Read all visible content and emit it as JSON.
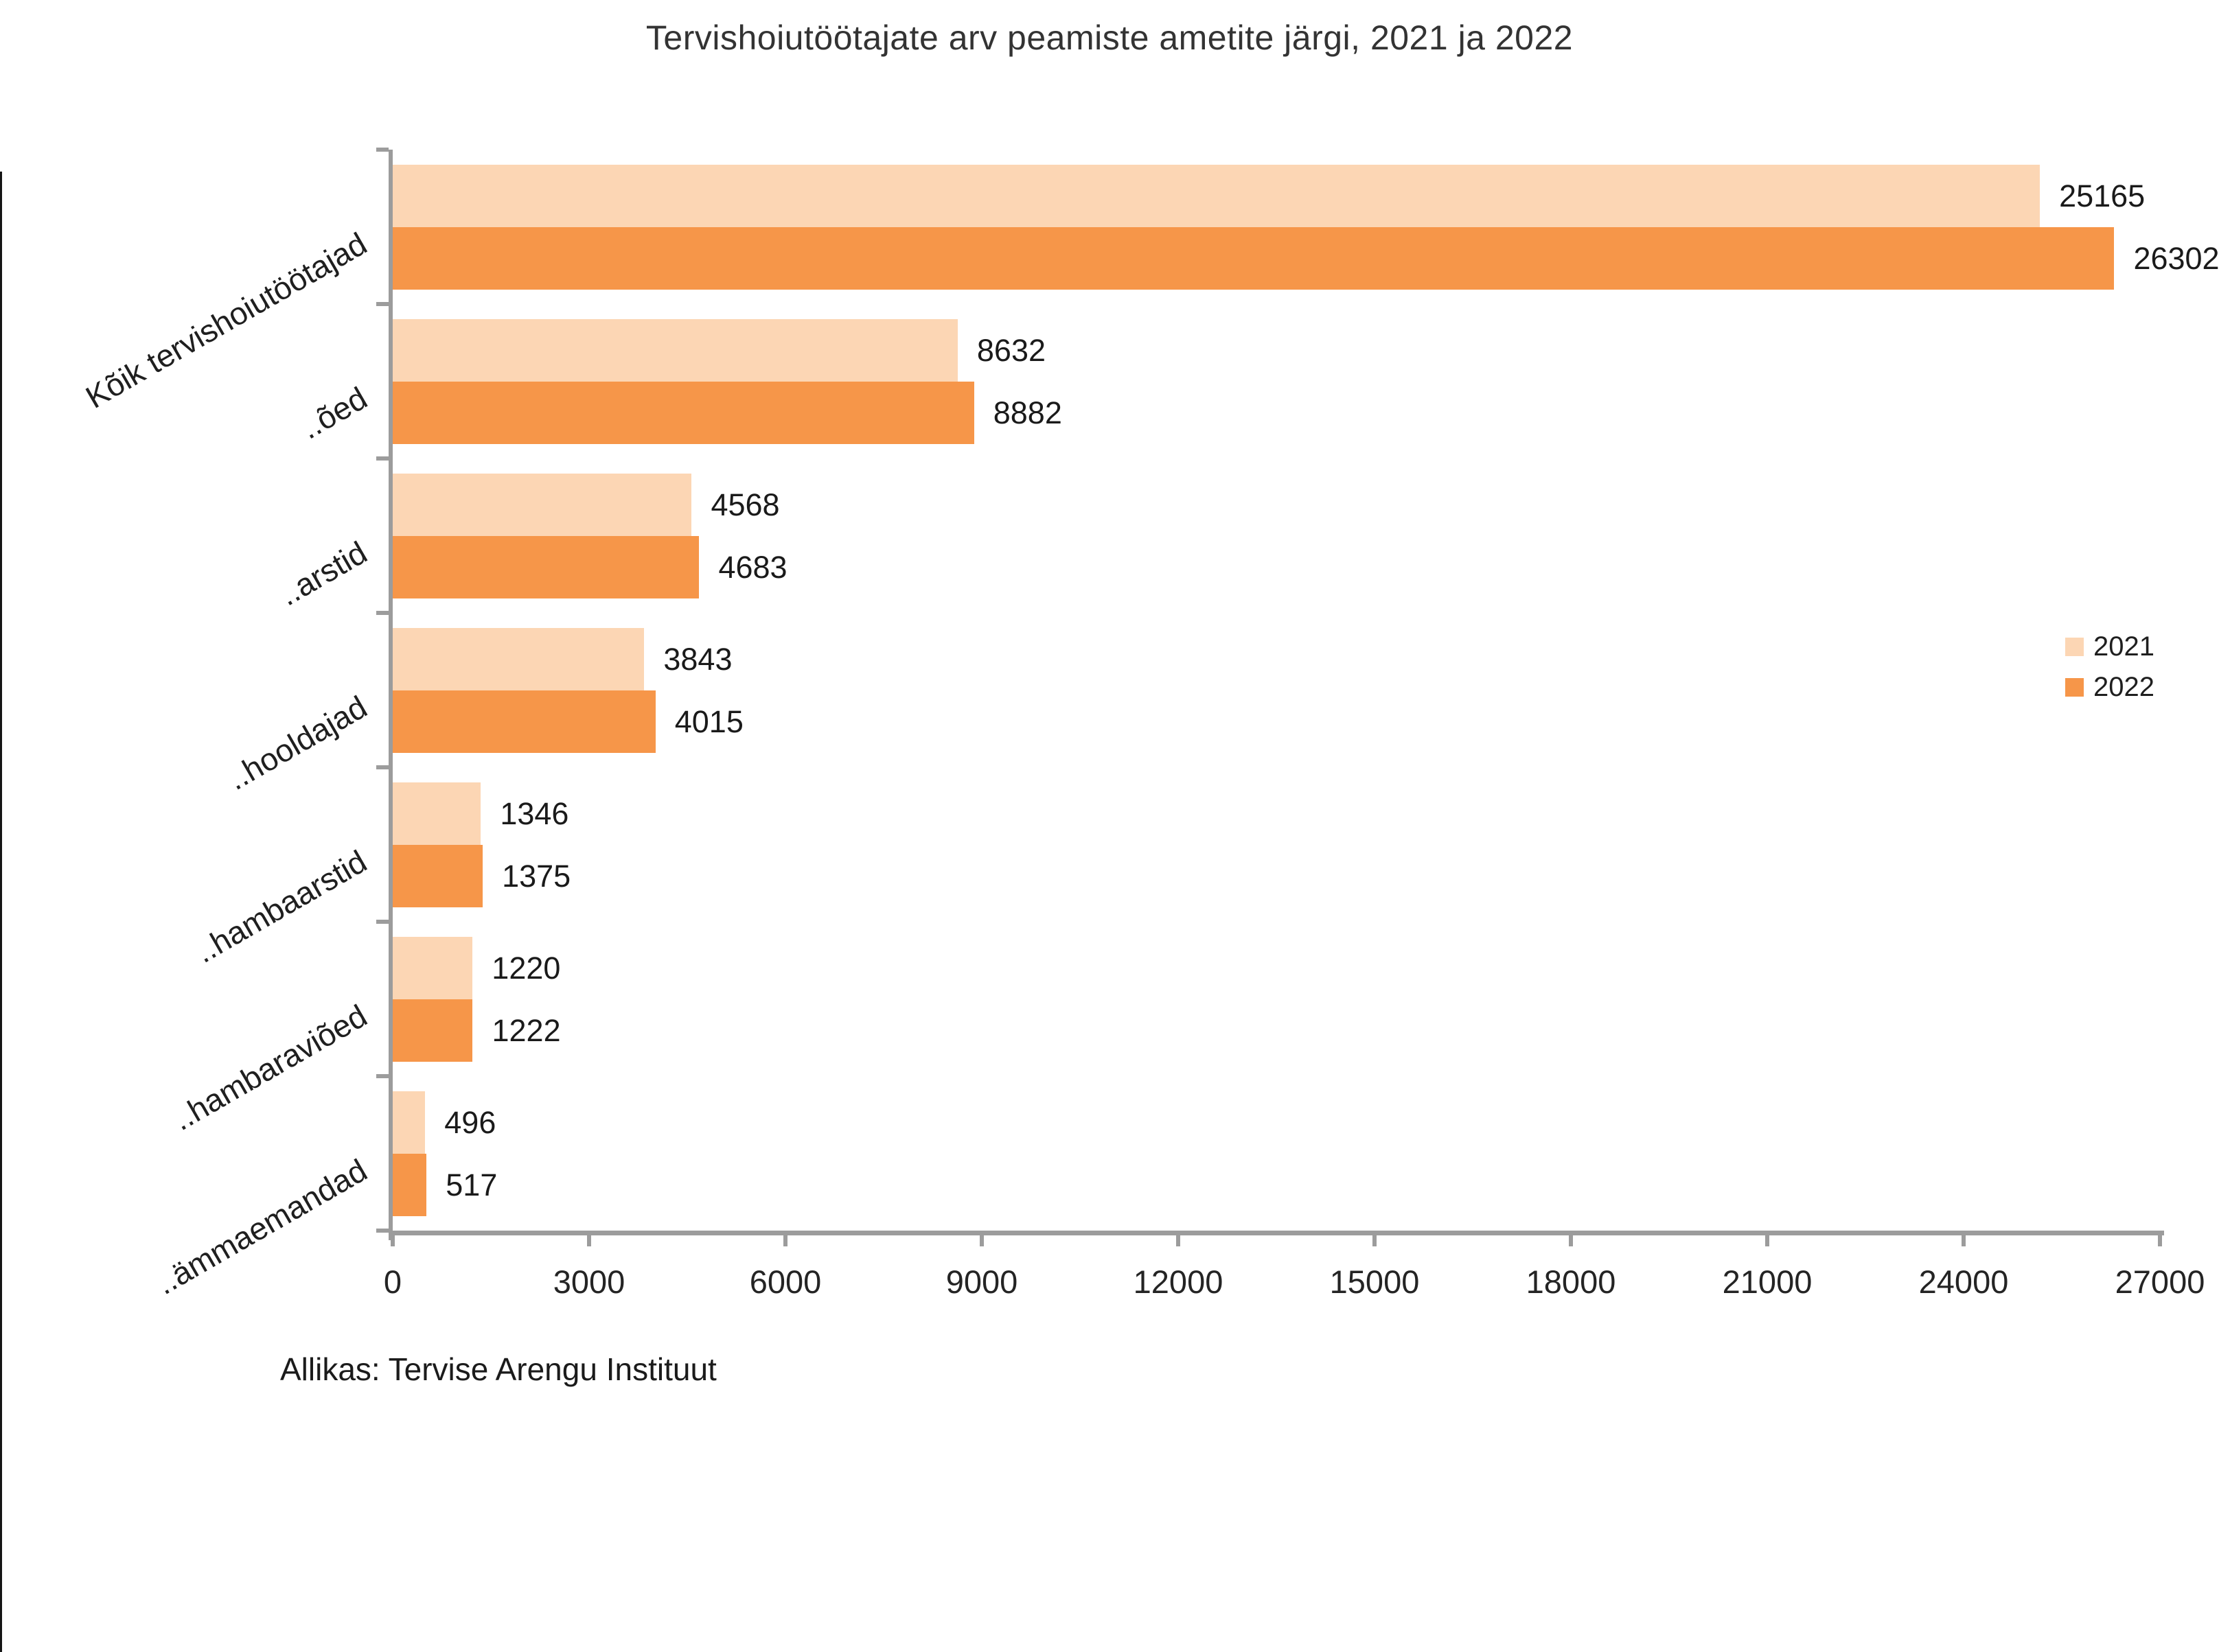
{
  "page": {
    "background": "#ffffff"
  },
  "title": "Tervishoiutöötajate arv peamiste ametite järgi, 2021 ja 2022",
  "source_note": "Allikas: Tervise Arengu Instituut",
  "legend": {
    "position": "right",
    "items": [
      {
        "label": "2021",
        "color": "#FCD6B4"
      },
      {
        "label": "2022",
        "color": "#F69649"
      }
    ]
  },
  "chart_data": {
    "type": "bar",
    "orientation": "horizontal",
    "title": "Tervishoiutöötajate arv peamiste ametite järgi, 2021 ja 2022",
    "categories": [
      "Kõik tervishoiutöötajad",
      "..õed",
      "..arstid",
      "..hooldajad",
      "..hambaarstid",
      "..hambaraviõed",
      "..ämmaemandad"
    ],
    "series": [
      {
        "name": "2021",
        "color": "#FCD6B4",
        "values": [
          25165,
          8632,
          4568,
          3843,
          1346,
          1220,
          496
        ]
      },
      {
        "name": "2022",
        "color": "#F69649",
        "values": [
          26302,
          8882,
          4683,
          4015,
          1375,
          1222,
          517
        ]
      }
    ],
    "xlabel": "",
    "ylabel": "",
    "x_ticks": [
      0,
      3000,
      6000,
      9000,
      12000,
      15000,
      18000,
      21000,
      24000,
      27000
    ],
    "xlim": [
      0,
      27000
    ],
    "grid": false,
    "value_labels": true,
    "legend_position": "right",
    "axis_color": "#9c9c9c",
    "text_color": "#1f1f1f"
  }
}
